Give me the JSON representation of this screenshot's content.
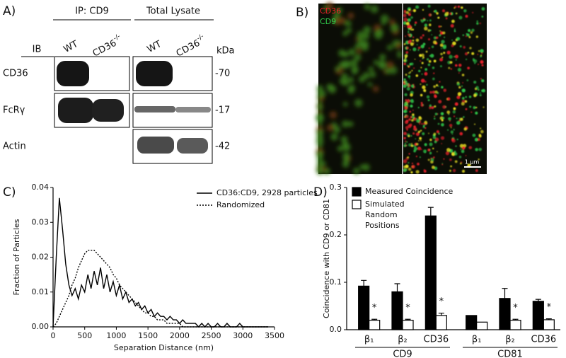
{
  "panel_a": {
    "label": "A)",
    "ip_header": "IP: CD9",
    "lysate_header": "Total Lysate",
    "lanes": [
      {
        "text": "WT"
      },
      {
        "text": "CD36",
        "sup": "-/-"
      },
      {
        "text": "WT"
      },
      {
        "text": "CD36",
        "sup": "-/-"
      }
    ],
    "ib_label": "IB",
    "kda_label": "kDa",
    "rows": [
      {
        "name": "CD36",
        "kda": "-70"
      },
      {
        "name": "FcRγ",
        "kda": "-17"
      },
      {
        "name": "Actin",
        "kda": "-42"
      }
    ]
  },
  "panel_b": {
    "label": "B)",
    "channels": [
      {
        "name": "CD36",
        "color": "#e8202a"
      },
      {
        "name": "CD9",
        "color": "#2ec84a"
      }
    ],
    "scale_bar": "1 µm"
  },
  "panel_c": {
    "label": "C)"
  },
  "panel_d": {
    "label": "D)"
  },
  "chart_data": [
    {
      "type": "line",
      "xlabel": "Separation Distance (nm)",
      "ylabel": "Fraction of Particles",
      "xlim": [
        0,
        3500
      ],
      "xticks": [
        0,
        500,
        1000,
        1500,
        2000,
        2500,
        3000,
        3500
      ],
      "ylim": [
        0,
        0.04
      ],
      "yticks": [
        {
          "value": 0,
          "label": "0.00"
        },
        0.01,
        0.02,
        0.03,
        0.04
      ],
      "x": [
        0,
        50,
        100,
        150,
        200,
        250,
        300,
        350,
        400,
        450,
        500,
        550,
        600,
        650,
        700,
        750,
        800,
        850,
        900,
        950,
        1000,
        1050,
        1100,
        1150,
        1200,
        1250,
        1300,
        1350,
        1400,
        1450,
        1500,
        1550,
        1600,
        1650,
        1700,
        1750,
        1800,
        1850,
        1900,
        1950,
        2000,
        2050,
        2100,
        2150,
        2200,
        2250,
        2300,
        2350,
        2400,
        2450,
        2500,
        2550,
        2600,
        2650,
        2700,
        2750,
        2800,
        2850,
        2900,
        2950,
        3000,
        3050,
        3100,
        3150,
        3200,
        3250,
        3300,
        3350,
        3400
      ],
      "series": [
        {
          "name": "CD36:CD9, 2928 particles",
          "color": "#000000",
          "line_style": "solid",
          "values": [
            0,
            0.02,
            0.037,
            0.028,
            0.018,
            0.012,
            0.009,
            0.011,
            0.008,
            0.012,
            0.01,
            0.015,
            0.011,
            0.016,
            0.012,
            0.017,
            0.011,
            0.015,
            0.01,
            0.013,
            0.009,
            0.012,
            0.008,
            0.01,
            0.007,
            0.008,
            0.006,
            0.007,
            0.005,
            0.006,
            0.004,
            0.005,
            0.003,
            0.004,
            0.003,
            0.003,
            0.002,
            0.003,
            0.002,
            0.002,
            0.001,
            0.002,
            0.001,
            0.001,
            0.001,
            0.001,
            0,
            0.001,
            0,
            0.001,
            0,
            0,
            0.001,
            0,
            0,
            0.001,
            0,
            0,
            0,
            0.001,
            0,
            0,
            0,
            0,
            0,
            0,
            0,
            0,
            0
          ]
        },
        {
          "name": "Randomized",
          "color": "#000000",
          "line_style": "dotted",
          "values": [
            0,
            0.001,
            0.003,
            0.005,
            0.007,
            0.009,
            0.012,
            0.014,
            0.017,
            0.019,
            0.021,
            0.022,
            0.022,
            0.022,
            0.021,
            0.02,
            0.019,
            0.018,
            0.017,
            0.015,
            0.014,
            0.012,
            0.011,
            0.01,
            0.009,
            0.008,
            0.007,
            0.006,
            0.005,
            0.004,
            0.004,
            0.003,
            0.003,
            0.002,
            0.002,
            0.002,
            0.001,
            0.001,
            0.001,
            0.001,
            0.001,
            0,
            0,
            0,
            0,
            0,
            0,
            0,
            0,
            0,
            0,
            0,
            0,
            0,
            0,
            0,
            0,
            0,
            0,
            0,
            0,
            0,
            0,
            0,
            0,
            0,
            0,
            0,
            0
          ]
        }
      ]
    },
    {
      "type": "bar",
      "ylabel": "Coincidence with CD9 or CD81",
      "ylim": [
        0,
        0.3
      ],
      "yticks": [
        {
          "value": 0,
          "label": "0.0"
        },
        0.1,
        0.2,
        0.3
      ],
      "groups": [
        {
          "name": "CD9",
          "categories": [
            "β₁",
            "β₂",
            "CD36"
          ]
        },
        {
          "name": "CD81",
          "categories": [
            "β₁",
            "β₂",
            "CD36"
          ]
        }
      ],
      "series": [
        {
          "name": "Measured Coincidence",
          "color": "#000000",
          "values": [
            0.092,
            0.08,
            0.24,
            0.03,
            0.066,
            0.06
          ],
          "errors": [
            0.012,
            0.017,
            0.018,
            0,
            0.021,
            0.004
          ]
        },
        {
          "name": "Simulated Random Positions",
          "color": "#ffffff",
          "values": [
            0.02,
            0.02,
            0.03,
            0.016,
            0.02,
            0.021
          ],
          "errors": [
            0.002,
            0.002,
            0.005,
            0,
            0.002,
            0.002
          ],
          "significance": [
            "*",
            "*",
            "*",
            null,
            "*",
            "*"
          ]
        }
      ]
    }
  ]
}
